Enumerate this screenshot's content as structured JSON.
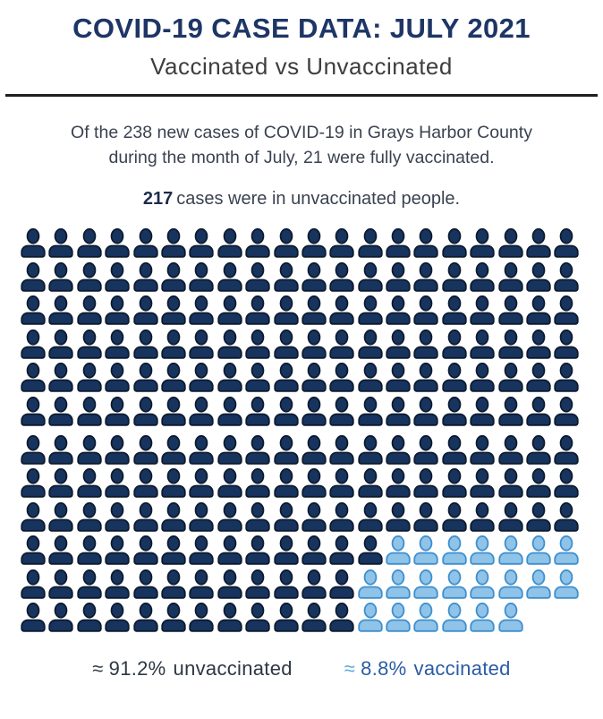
{
  "header": {
    "title": "COVID-19 CASE DATA: JULY 2021",
    "subtitle": "Vaccinated vs Unvaccinated"
  },
  "intro": {
    "line1": "Of the 238 new cases of COVID-19 in Grays Harbor County",
    "line2": "during the month of July, 21 were fully vaccinated."
  },
  "stat": {
    "number": "217",
    "text": "cases were in unvaccinated people."
  },
  "legend": {
    "unvaccinated": {
      "approx": "≈",
      "value": "91.2%",
      "label": "unvaccinated"
    },
    "vaccinated": {
      "approx": "≈",
      "value": "8.8%",
      "label": "vaccinated"
    }
  },
  "chart_data": {
    "type": "pictogram",
    "title": "COVID-19 cases July 2021, Grays Harbor County",
    "total_cases": 238,
    "unvaccinated_cases": 217,
    "vaccinated_cases": 21,
    "unvaccinated_pct": 91.2,
    "vaccinated_pct": 8.8,
    "columns": 20,
    "group_break_index": 6,
    "rows": [
      {
        "unvaccinated": 20,
        "vaccinated": 0
      },
      {
        "unvaccinated": 20,
        "vaccinated": 0
      },
      {
        "unvaccinated": 20,
        "vaccinated": 0
      },
      {
        "unvaccinated": 20,
        "vaccinated": 0
      },
      {
        "unvaccinated": 20,
        "vaccinated": 0
      },
      {
        "unvaccinated": 20,
        "vaccinated": 0
      },
      {
        "unvaccinated": 20,
        "vaccinated": 0
      },
      {
        "unvaccinated": 20,
        "vaccinated": 0
      },
      {
        "unvaccinated": 20,
        "vaccinated": 0
      },
      {
        "unvaccinated": 13,
        "vaccinated": 7
      },
      {
        "unvaccinated": 12,
        "vaccinated": 8
      },
      {
        "unvaccinated": 12,
        "vaccinated": 6
      }
    ],
    "colors": {
      "unvaccinated_fill": "#17345f",
      "unvaccinated_stroke": "#0d1a2e",
      "vaccinated_fill": "#8fc3e8",
      "vaccinated_stroke": "#3e8fce",
      "title_navy": "#1e3666",
      "legend_blue": "#2a5ba6",
      "legend_light_blue": "#56a6dc"
    }
  }
}
